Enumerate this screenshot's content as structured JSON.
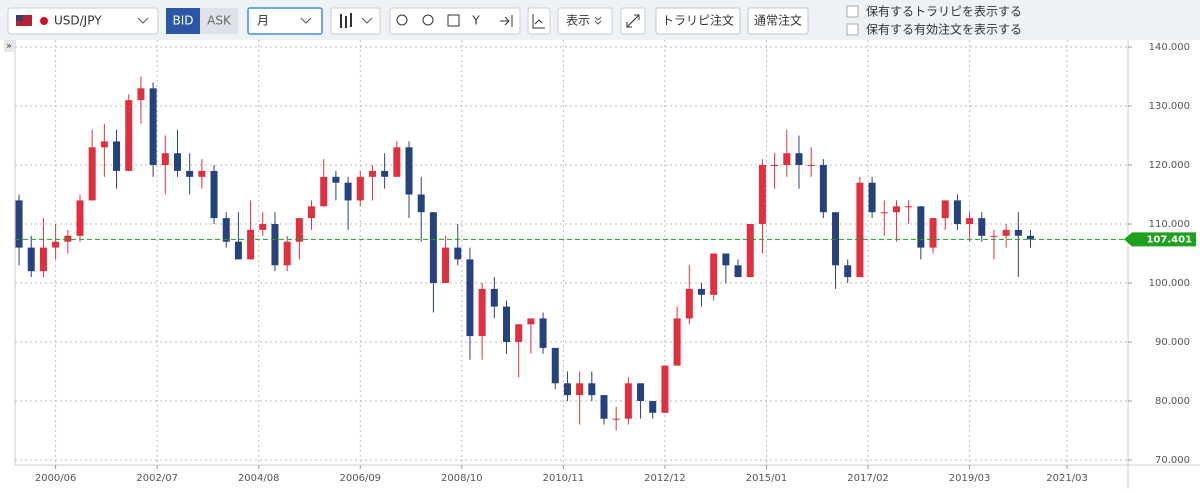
{
  "toolbar": {
    "symbol": "USD/JPY",
    "bid": "BID",
    "ask": "ASK",
    "period": "月",
    "display": "表示",
    "trarepi_order": "トラリピ注文",
    "normal_order": "通常注文",
    "show_trarepi": "保有するトラリピを表示する",
    "show_orders": "保有する有効注文を表示する"
  },
  "chart_data": {
    "type": "candlestick",
    "x": [
      "1999/09",
      "1999/12",
      "2000/03",
      "2000/06",
      "2000/09",
      "2000/12",
      "2001/03",
      "2001/06",
      "2001/09",
      "2001/12",
      "2002/03",
      "2002/06",
      "2002/09",
      "2002/12",
      "2003/03",
      "2003/06",
      "2003/09",
      "2003/12",
      "2004/03",
      "2004/06",
      "2004/09",
      "2004/12",
      "2005/03",
      "2005/06",
      "2005/09",
      "2005/12",
      "2006/03",
      "2006/06",
      "2006/09",
      "2006/12",
      "2007/03",
      "2007/06",
      "2007/09",
      "2007/12",
      "2008/03",
      "2008/06",
      "2008/09",
      "2008/12",
      "2009/03",
      "2009/06",
      "2009/09",
      "2009/12",
      "2010/03",
      "2010/06",
      "2010/09",
      "2010/12",
      "2011/03",
      "2011/06",
      "2011/09",
      "2011/12",
      "2012/03",
      "2012/06",
      "2012/09",
      "2012/12",
      "2013/03",
      "2013/06",
      "2013/09",
      "2013/12",
      "2014/03",
      "2014/06",
      "2014/09",
      "2014/12",
      "2015/03",
      "2015/06",
      "2015/09",
      "2015/12",
      "2016/03",
      "2016/06",
      "2016/09",
      "2016/12",
      "2017/03",
      "2017/06",
      "2017/09",
      "2017/12",
      "2018/03",
      "2018/06",
      "2018/09",
      "2018/12",
      "2019/03",
      "2019/06",
      "2019/09",
      "2019/12",
      "2020/03",
      "2020/06"
    ],
    "open": [
      114,
      106,
      102,
      106,
      107,
      108,
      114,
      123,
      124,
      119,
      131,
      133,
      120,
      122,
      119,
      118,
      119,
      111,
      107,
      104,
      109,
      110,
      103,
      107,
      111,
      113,
      118,
      117,
      114,
      118,
      119,
      118,
      123,
      115,
      112,
      100,
      106,
      104,
      91,
      99,
      96,
      90,
      93,
      94,
      89,
      83,
      81,
      83,
      81,
      77,
      77,
      83,
      80,
      78,
      86,
      94,
      99,
      98,
      105,
      103,
      101,
      110,
      120,
      120,
      122,
      120,
      120,
      112,
      103,
      101,
      117,
      112,
      112,
      113,
      113,
      106,
      111,
      114,
      110,
      111,
      108,
      108,
      109,
      108
    ],
    "high": [
      115,
      108,
      111,
      110,
      109,
      115,
      126,
      127,
      126,
      132,
      135,
      134,
      125,
      126,
      122,
      121,
      120,
      112,
      112,
      114,
      112,
      112,
      108,
      111,
      114,
      121,
      119,
      118,
      119,
      120,
      122,
      124,
      124,
      118,
      112,
      108,
      110,
      106,
      100,
      101,
      97,
      93,
      94,
      95,
      89,
      85,
      85,
      85,
      81,
      79,
      84,
      83,
      80,
      86,
      96,
      103,
      100,
      105,
      105,
      104,
      110,
      121,
      122,
      126,
      125,
      123,
      121,
      112,
      104,
      118,
      118,
      114,
      114,
      114,
      113,
      111,
      114,
      115,
      112,
      112,
      109,
      110,
      112,
      109
    ],
    "low": [
      103,
      101,
      101,
      104,
      105,
      107,
      114,
      118,
      116,
      119,
      127,
      118,
      115,
      118,
      115,
      116,
      110,
      106,
      104,
      104,
      108,
      102,
      102,
      104,
      109,
      113,
      114,
      109,
      113,
      114,
      116,
      118,
      111,
      107,
      95,
      100,
      103,
      87,
      87,
      94,
      88,
      84,
      88,
      88,
      82,
      80,
      76,
      80,
      76,
      75,
      76,
      77,
      77,
      78,
      86,
      93,
      96,
      97,
      100,
      101,
      101,
      105,
      116,
      118,
      116,
      118,
      111,
      99,
      100,
      101,
      111,
      108,
      107,
      110,
      104,
      105,
      109,
      109,
      107,
      107,
      104,
      106,
      101,
      106
    ],
    "close": [
      106,
      102,
      106,
      107,
      108,
      114,
      123,
      124,
      119,
      131,
      133,
      120,
      122,
      119,
      118,
      119,
      111,
      107,
      104,
      109,
      110,
      103,
      107,
      111,
      113,
      118,
      117,
      114,
      118,
      119,
      118,
      123,
      115,
      112,
      100,
      106,
      104,
      91,
      99,
      96,
      90,
      93,
      94,
      89,
      83,
      81,
      83,
      81,
      77,
      77,
      83,
      80,
      78,
      86,
      94,
      99,
      98,
      105,
      103,
      101,
      110,
      120,
      120,
      122,
      120,
      120,
      112,
      103,
      101,
      117,
      112,
      112,
      113,
      113,
      106,
      111,
      114,
      110,
      111,
      108,
      108,
      109,
      108,
      107.4
    ],
    "up_color": "#e0303f",
    "down_color": "#26427e",
    "xlim": [
      "1999/08",
      "2022/06"
    ],
    "xticks": [
      "2000/06",
      "2002/07",
      "2004/08",
      "2006/09",
      "2008/10",
      "2010/11",
      "2012/12",
      "2015/01",
      "2017/02",
      "2019/03",
      "2021/03"
    ],
    "ylim": [
      69.15,
      141.19
    ],
    "yticks": [
      {
        "value": 70,
        "label": "70.000"
      },
      {
        "value": 80,
        "label": "80.000"
      },
      {
        "value": 90,
        "label": "90.000"
      },
      {
        "value": 100,
        "label": "100.000"
      },
      {
        "value": 110,
        "label": "110.000"
      },
      {
        "value": 120,
        "label": "120.000"
      },
      {
        "value": 130,
        "label": "130.000"
      },
      {
        "value": 140,
        "label": "140.000"
      }
    ],
    "current_price": 107.401,
    "current_color": "#1fa01f",
    "grid": true
  }
}
